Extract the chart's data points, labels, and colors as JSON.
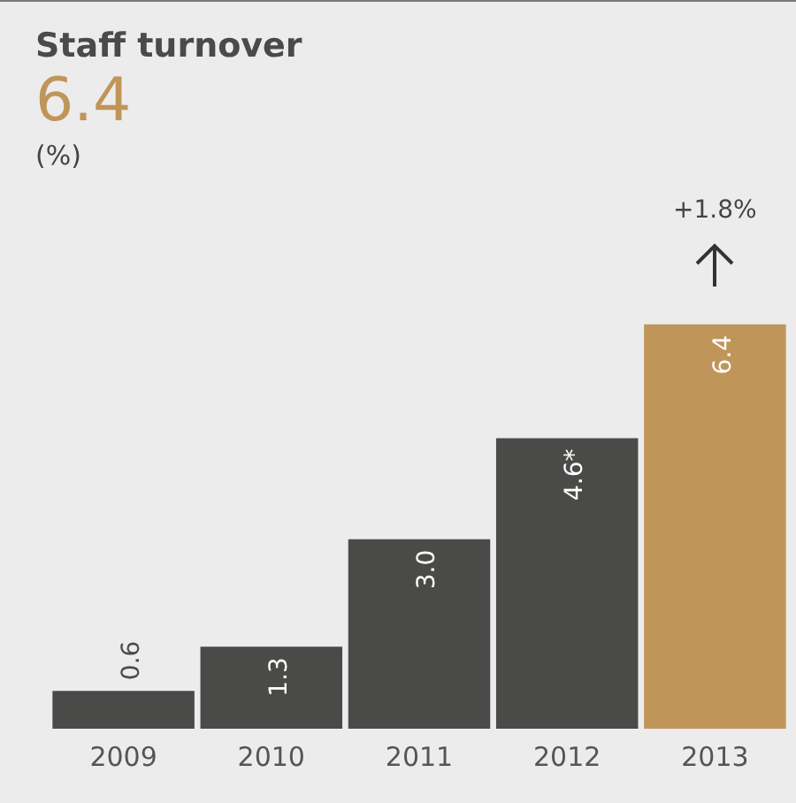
{
  "chart_data": {
    "type": "bar",
    "title": "Staff turnover",
    "subtitle": "6.4",
    "categories": [
      "2009",
      "2010",
      "2011",
      "2012",
      "2013"
    ],
    "values": [
      0.6,
      1.3,
      3.0,
      4.6,
      6.4
    ],
    "colors": [
      "#4a4a48",
      "#4a4a48",
      "#4a4a48",
      "#4a4a48",
      "#c0955a"
    ],
    "value_labels": [
      "0.6",
      "1.3",
      "3.0",
      "4.6*",
      "6.4"
    ],
    "tick_labels": "x",
    "grid": false,
    "legend": false,
    "annotations": [
      "(%)",
      "+1.8%"
    ]
  }
}
